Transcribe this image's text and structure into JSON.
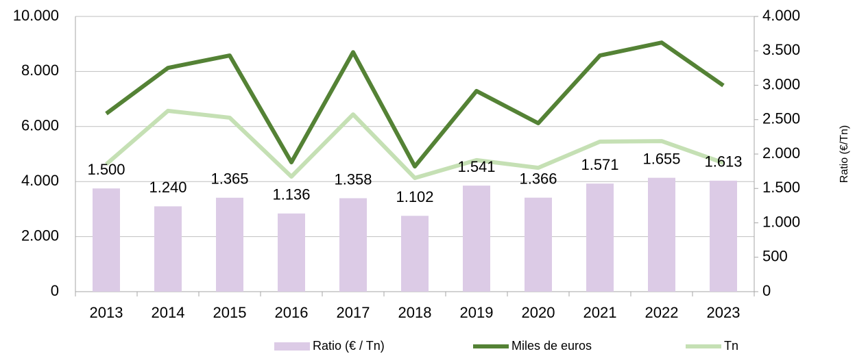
{
  "chart_data": {
    "type": "bar-line",
    "categories": [
      "2013",
      "2014",
      "2015",
      "2016",
      "2017",
      "2018",
      "2019",
      "2020",
      "2021",
      "2022",
      "2023"
    ],
    "series": [
      {
        "name": "Ratio (€ / Tn)",
        "type": "bar",
        "axis": "y2",
        "color": "#dccbe6",
        "values": [
          1500,
          1240,
          1365,
          1136,
          1358,
          1102,
          1541,
          1366,
          1571,
          1655,
          1613
        ],
        "value_labels": [
          "1.500",
          "1.240",
          "1.365",
          "1.136",
          "1.358",
          "1.102",
          "1.541",
          "1.366",
          "1.571",
          "1.655",
          "1.613"
        ]
      },
      {
        "name": "Miles de euros",
        "type": "line",
        "color": "#548235",
        "values": [
          6470,
          8130,
          8580,
          4700,
          8700,
          4550,
          7290,
          6120,
          8580,
          9050,
          7490
        ]
      },
      {
        "name": "Tn",
        "type": "line",
        "color": "#c5e0b4",
        "values": [
          4630,
          6570,
          6320,
          4180,
          6440,
          4130,
          4780,
          4500,
          5450,
          5470,
          4680
        ]
      }
    ],
    "ylim": [
      0,
      10000
    ],
    "yticks": [
      0,
      {
        "value": 2000,
        "label": "2.000"
      },
      {
        "value": 4000,
        "label": "4.000"
      },
      {
        "value": 6000,
        "label": "6.000"
      },
      {
        "value": 8000,
        "label": "8.000"
      },
      {
        "value": 10000,
        "label": "10.000"
      }
    ],
    "y2lim": [
      0,
      4000
    ],
    "y2ticks": [
      0,
      500,
      {
        "value": 1000,
        "label": "1.000"
      },
      {
        "value": 1500,
        "label": "1.500"
      },
      {
        "value": 2000,
        "label": "2.000"
      },
      {
        "value": 2500,
        "label": "2.500"
      },
      {
        "value": 3000,
        "label": "3.000"
      },
      {
        "value": 3500,
        "label": "3.500"
      },
      {
        "value": 4000,
        "label": "4.000"
      }
    ],
    "y2_label": "Ratio (€/Tn)",
    "grid": true,
    "legend": "bottom"
  }
}
